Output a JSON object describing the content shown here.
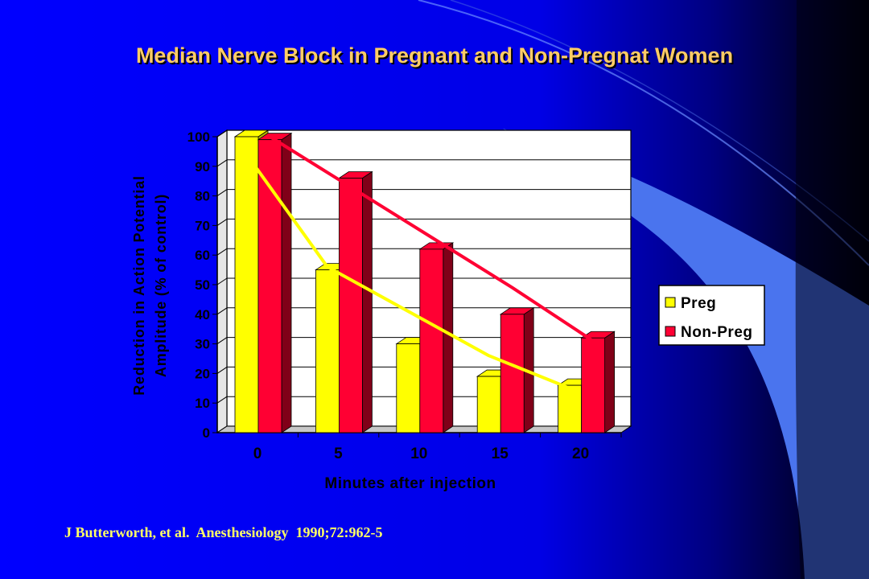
{
  "slide": {
    "title": "Median Nerve Block in Pregnant and Non-Pregnat Women",
    "citation": "J Butterworth, et al.  Anesthesiology  1990;72:962-5",
    "colors": {
      "background_left": "#0000FF",
      "background_right": "#000000",
      "swoosh": "#4A74EE",
      "title_text": "#FFCC66",
      "citation_text": "#FFFF66"
    }
  },
  "chart_data": {
    "type": "bar",
    "categories": [
      "0",
      "5",
      "10",
      "15",
      "20"
    ],
    "series": [
      {
        "name": "Preg",
        "values": [
          100,
          55,
          30,
          19,
          16
        ],
        "color": "#FFFF00",
        "side_color": "#B3B300",
        "trend_color": "#FFFF00"
      },
      {
        "name": "Non-Preg",
        "values": [
          99,
          86,
          62,
          40,
          32
        ],
        "color": "#FF0033",
        "side_color": "#800018",
        "trend_color": "#FF0033"
      }
    ],
    "trend_lines": [
      {
        "series": "Preg",
        "values": [
          94,
          56,
          41,
          26,
          15
        ]
      },
      {
        "series": "Non-Preg",
        "values": [
          100,
          83,
          66,
          49,
          31
        ]
      }
    ],
    "xlabel": "Minutes after injection",
    "ylabel": [
      "Reduction in Action Potential",
      "Amplitude (% of control)"
    ],
    "ylim": [
      0,
      100
    ],
    "yticks": [
      0,
      10,
      20,
      30,
      40,
      50,
      60,
      70,
      80,
      90,
      100
    ],
    "grid": true,
    "legend_position": "right",
    "plot_background": "#FFFFFF",
    "grid_color": "#000000"
  }
}
